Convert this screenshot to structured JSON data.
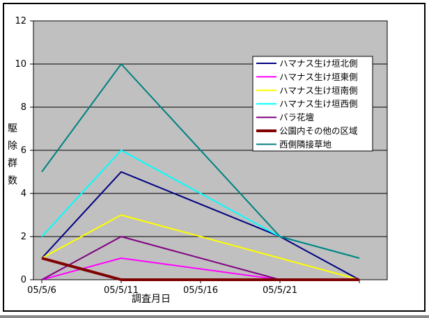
{
  "chart_data": {
    "type": "line",
    "title": "",
    "xlabel": "調査月日",
    "ylabel": "駆除群数",
    "ylabel_chars": [
      "駆",
      "除",
      "群",
      "数"
    ],
    "ylim": [
      0,
      12
    ],
    "yticks": [
      0,
      2,
      4,
      6,
      8,
      10,
      12
    ],
    "grid": "horizontal-black-on-gray",
    "plot_bg": "#c0c0c0",
    "outer_bg": "#ffffff",
    "legend_position": "inside-right",
    "x_days": [
      0,
      5,
      15,
      20
    ],
    "xticks": [
      {
        "day": 0,
        "label": "05/5/6"
      },
      {
        "day": 5,
        "label": "05/5/11"
      },
      {
        "day": 10,
        "label": "05/5/16"
      },
      {
        "day": 15,
        "label": "05/5/21"
      },
      {
        "day": 20,
        "label": ""
      }
    ],
    "series": [
      {
        "name": "ハマナス生け垣北側",
        "color": "#000080",
        "width": 2,
        "values": [
          1,
          5,
          2,
          0
        ]
      },
      {
        "name": "ハマナス生け垣東側",
        "color": "#ff00ff",
        "width": 2,
        "values": [
          0,
          1,
          0,
          0
        ]
      },
      {
        "name": "ハマナス生け垣南側",
        "color": "#ffff00",
        "width": 2,
        "values": [
          1,
          3,
          1,
          0
        ]
      },
      {
        "name": "ハマナス生け垣西側",
        "color": "#00ffff",
        "width": 2,
        "values": [
          2,
          6,
          2,
          1
        ]
      },
      {
        "name": "バラ花壇",
        "color": "#800080",
        "width": 2,
        "values": [
          0,
          2,
          0,
          0
        ]
      },
      {
        "name": "公園内その他の区域",
        "color": "#800000",
        "width": 4,
        "values": [
          1,
          0,
          0,
          0
        ]
      },
      {
        "name": "西側隣接草地",
        "color": "#008080",
        "width": 2,
        "values": [
          5,
          10,
          2,
          1
        ]
      }
    ]
  }
}
